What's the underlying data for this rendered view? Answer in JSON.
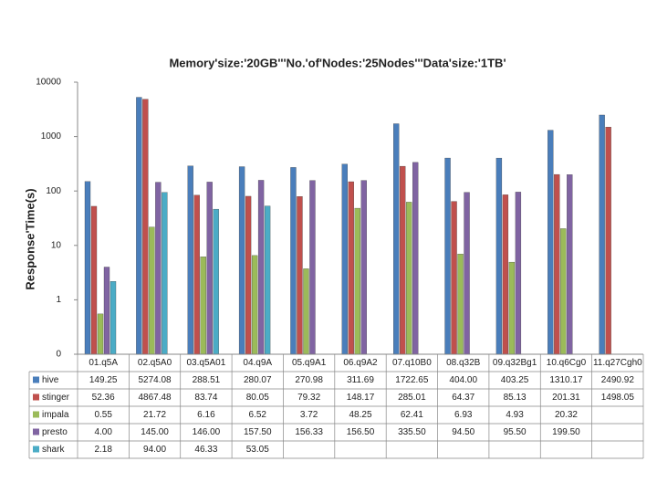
{
  "chart_data": {
    "type": "bar",
    "title": "Memory'size:'20GB'''No.'of'Nodes:'25Nodes'''Data'size:'1TB'",
    "y_label": "Response'Time(s)",
    "categories": [
      "01.q5A",
      "02.q5A0",
      "03.q5A01",
      "04.q9A",
      "05.q9A1",
      "06.q9A2",
      "07.q10B0",
      "08.q32B",
      "09.q32Bg1",
      "10.q6Cg0",
      "11.q27Cgh0"
    ],
    "series": [
      {
        "name": "hive",
        "color": "#4a7ebb",
        "values": [
          149.25,
          5274.08,
          288.51,
          280.07,
          270.98,
          311.69,
          1722.65,
          404.0,
          403.25,
          1310.17,
          2490.92
        ],
        "value_labels": [
          "149.25",
          "5274.08",
          "288.51",
          "280.07",
          "270.98",
          "311.69",
          "1722.65",
          "404.00",
          "403.25",
          "1310.17",
          "2490.92"
        ]
      },
      {
        "name": "stinger",
        "color": "#c0504d",
        "values": [
          52.36,
          4867.48,
          83.74,
          80.05,
          79.32,
          148.17,
          285.01,
          64.37,
          85.13,
          201.31,
          1498.05
        ],
        "value_labels": [
          "52.36",
          "4867.48",
          "83.74",
          "80.05",
          "79.32",
          "148.17",
          "285.01",
          "64.37",
          "85.13",
          "201.31",
          "1498.05"
        ]
      },
      {
        "name": "impala",
        "color": "#9bbb59",
        "values": [
          0.55,
          21.72,
          6.16,
          6.52,
          3.72,
          48.25,
          62.41,
          6.93,
          4.93,
          20.32,
          null
        ],
        "value_labels": [
          "0.55",
          "21.72",
          "6.16",
          "6.52",
          "3.72",
          "48.25",
          "62.41",
          "6.93",
          "4.93",
          "20.32",
          null
        ]
      },
      {
        "name": "presto",
        "color": "#8064a2",
        "values": [
          4.0,
          145.0,
          146.0,
          157.5,
          156.33,
          156.5,
          335.5,
          94.5,
          95.5,
          199.5,
          null
        ],
        "value_labels": [
          "4.00",
          "145.00",
          "146.00",
          "157.50",
          "156.33",
          "156.50",
          "335.50",
          "94.50",
          "95.50",
          "199.50",
          null
        ]
      },
      {
        "name": "shark",
        "color": "#4bacc6",
        "values": [
          2.18,
          94.0,
          46.33,
          53.05,
          null,
          null,
          null,
          null,
          null,
          null,
          null
        ],
        "value_labels": [
          "2.18",
          "94.00",
          "46.33",
          "53.05",
          null,
          null,
          null,
          null,
          null,
          null,
          null
        ]
      }
    ],
    "log_scale": true,
    "ylim": [
      0.1,
      10000
    ],
    "yticks": [
      {
        "value": 0.1,
        "label": "0"
      },
      1,
      10,
      100,
      1000,
      10000
    ],
    "grid": false
  }
}
